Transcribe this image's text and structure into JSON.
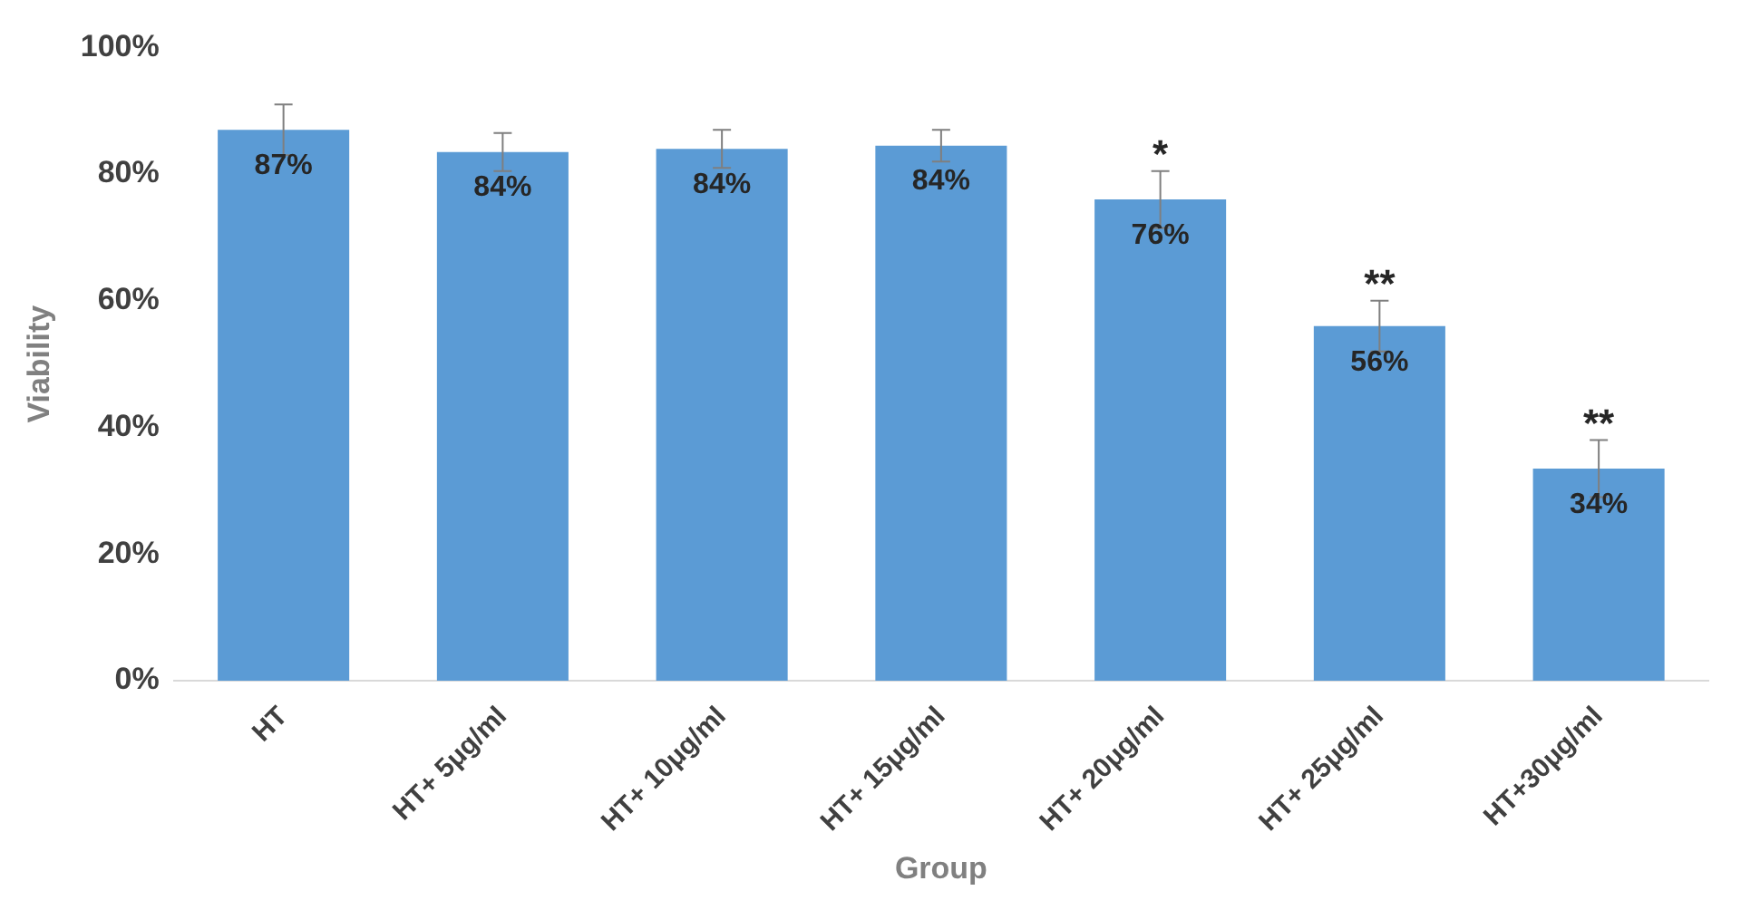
{
  "chart_data": {
    "type": "bar",
    "xlabel": "Group",
    "ylabel": "Viability",
    "categories": [
      "HT",
      "HT+ 5μg/ml",
      "HT+ 10μg/ml",
      "HT+ 15μg/ml",
      "HT+ 20μg/ml",
      "HT+ 25μg/ml",
      "HT+30μg/ml"
    ],
    "values": [
      87,
      83.5,
      84,
      84.5,
      76,
      56,
      33.5
    ],
    "value_labels": [
      "87%",
      "84%",
      "84%",
      "84%",
      "76%",
      "56%",
      "34%"
    ],
    "errors": [
      4,
      3,
      3,
      2.5,
      4.5,
      4,
      4.5
    ],
    "color": "#5b9bd5",
    "ylim": [
      0,
      100
    ],
    "yticks": [
      {
        "value": 0,
        "label": "0%"
      },
      {
        "value": 20,
        "label": "20%"
      },
      {
        "value": 40,
        "label": "40%"
      },
      {
        "value": 60,
        "label": "60%"
      },
      {
        "value": 80,
        "label": "80%"
      },
      {
        "value": 100,
        "label": "100%"
      }
    ],
    "annotations": [
      {
        "text": "*",
        "x": "HT+ 20μg/ml",
        "y": 80.5
      },
      {
        "text": "**",
        "x": "HT+ 25μg/ml",
        "y": 60
      },
      {
        "text": "**",
        "x": "HT+30μg/ml",
        "y": 38
      }
    ],
    "grid": false,
    "legend": false
  }
}
